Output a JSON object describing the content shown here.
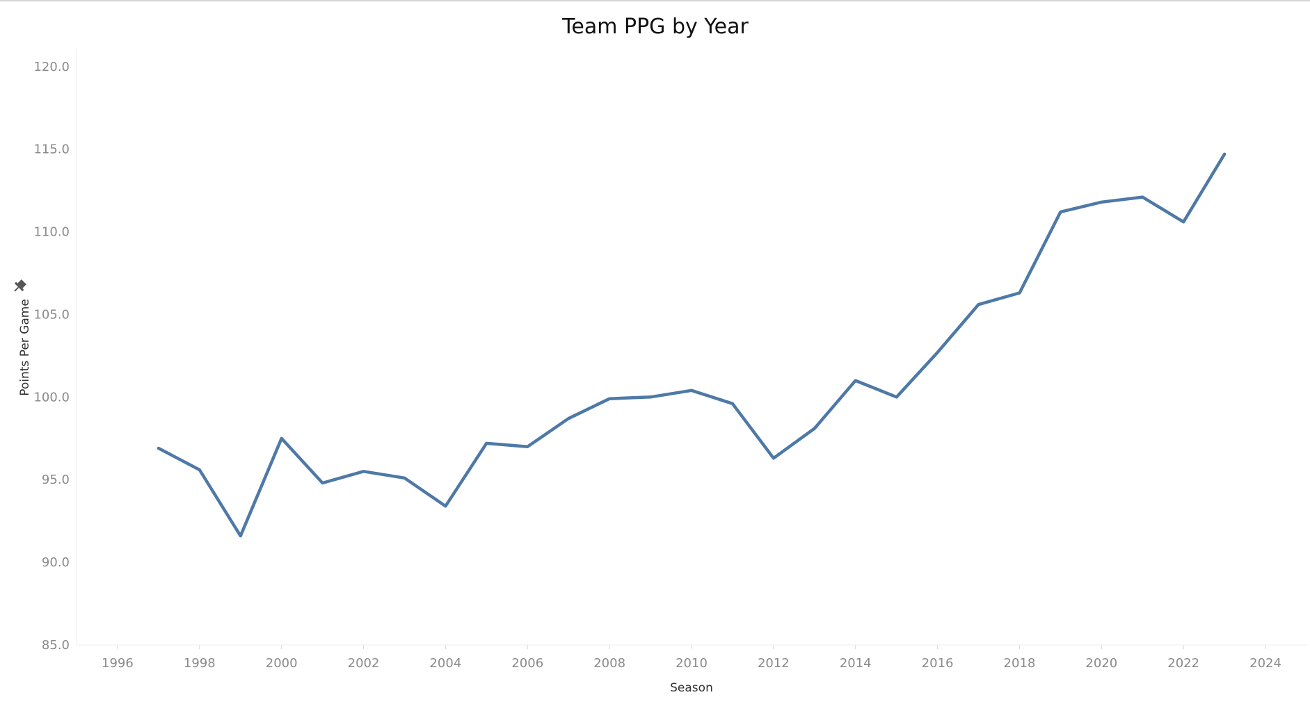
{
  "chart_data": {
    "type": "line",
    "title": "Team PPG by Year",
    "xlabel": "Season",
    "ylabel": "Points Per Game",
    "xlim": [
      1995,
      2025
    ],
    "ylim": [
      85,
      121
    ],
    "x_ticks": [
      1996,
      1998,
      2000,
      2002,
      2004,
      2006,
      2008,
      2010,
      2012,
      2014,
      2016,
      2018,
      2020,
      2022,
      2024
    ],
    "y_ticks": [
      "85.0",
      "90.0",
      "95.0",
      "100.0",
      "105.0",
      "110.0",
      "115.0",
      "120.0"
    ],
    "grid": false,
    "line_color": "#4e79a7",
    "series": [
      {
        "x": [
          1997,
          1998,
          1999,
          2000,
          2001,
          2002,
          2003,
          2004,
          2005,
          2006,
          2007,
          2008,
          2009,
          2010,
          2011,
          2012,
          2013,
          2014,
          2015,
          2016,
          2017,
          2018,
          2019,
          2020,
          2021,
          2022,
          2023
        ],
        "values": [
          96.9,
          95.6,
          91.6,
          97.5,
          94.8,
          95.5,
          95.1,
          93.4,
          97.2,
          97.0,
          98.7,
          99.9,
          100.0,
          100.4,
          99.6,
          96.3,
          98.1,
          101.0,
          100.0,
          102.7,
          105.6,
          106.3,
          111.2,
          111.8,
          112.1,
          110.6,
          114.7
        ]
      }
    ]
  },
  "icons": {
    "ylabel_pin": "pin-icon"
  }
}
